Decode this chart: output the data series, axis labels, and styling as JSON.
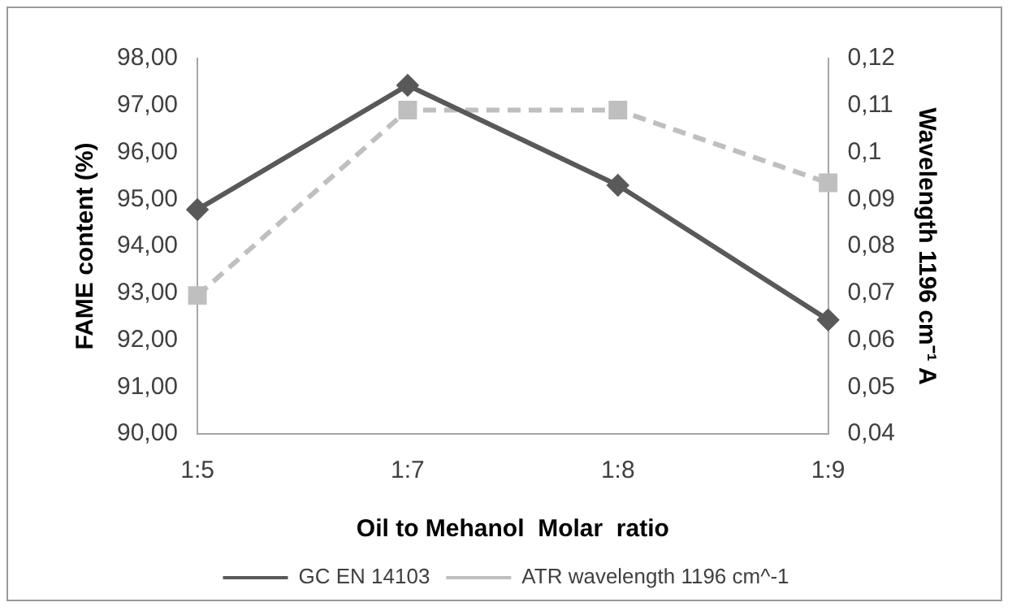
{
  "chart_data": {
    "type": "line",
    "xlabel": "Oil to Mehanol  Molar  ratio",
    "ylabel": "FAME content (%)",
    "y2label": "Wavelength 1196 cm⁻¹ A",
    "categories": [
      "1:5",
      "1:7",
      "1:8",
      "1:9"
    ],
    "series": [
      {
        "name": "GC EN 14103",
        "color": "#595959",
        "values": [
          94.78,
          97.43,
          95.3,
          92.43
        ],
        "marker": "diamond",
        "line_style": "solid"
      },
      {
        "name": "ATR wavelength 1196 cm^-1",
        "color": "#bfbfbf",
        "values": [
          0.0695,
          0.109,
          0.109,
          0.0935
        ],
        "axis": "y2",
        "marker": "square",
        "line_style": "dashed"
      }
    ],
    "ylim": [
      90,
      98
    ],
    "yticks": [
      {
        "value": 90,
        "label": "90,00"
      },
      {
        "value": 91,
        "label": "91,00"
      },
      {
        "value": 92,
        "label": "92,00"
      },
      {
        "value": 93,
        "label": "93,00"
      },
      {
        "value": 94,
        "label": "94,00"
      },
      {
        "value": 95,
        "label": "95,00"
      },
      {
        "value": 96,
        "label": "96,00"
      },
      {
        "value": 97,
        "label": "97,00"
      },
      {
        "value": 98,
        "label": "98,00"
      }
    ],
    "y2lim": [
      0.04,
      0.12
    ],
    "y2ticks": [
      {
        "value": 0.04,
        "label": "0,04"
      },
      {
        "value": 0.05,
        "label": "0,05"
      },
      {
        "value": 0.06,
        "label": "0,06"
      },
      {
        "value": 0.07,
        "label": "0,07"
      },
      {
        "value": 0.08,
        "label": "0,08"
      },
      {
        "value": 0.09,
        "label": "0,09"
      },
      {
        "value": 0.1,
        "label": "0,1"
      },
      {
        "value": 0.11,
        "label": "0,11"
      },
      {
        "value": 0.12,
        "label": "0,12"
      }
    ],
    "grid": false,
    "legend": "bottom"
  }
}
